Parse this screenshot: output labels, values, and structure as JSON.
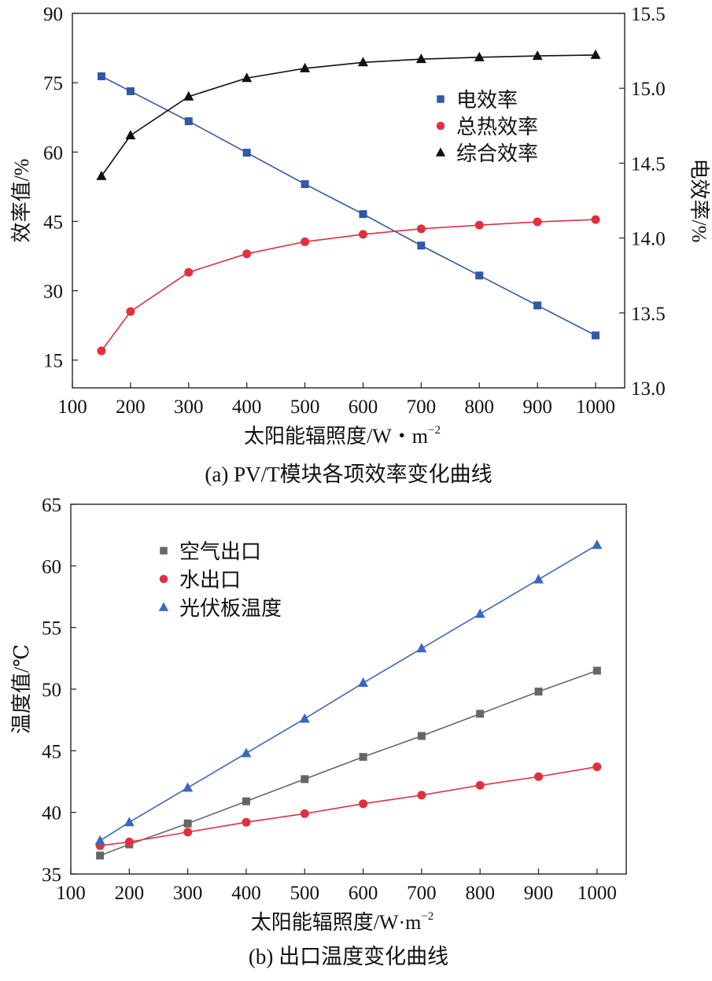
{
  "chart_data": [
    {
      "type": "line",
      "caption": "(a) PV/T模块各项效率变化曲线",
      "xlabel": "太阳能辐照度/W・m",
      "xlabel_sup": "−2",
      "ylabel": "效率值/%",
      "y2label": "电效率/%",
      "xlim": [
        100,
        1050
      ],
      "ylim": [
        9,
        90
      ],
      "y2lim": [
        13.0,
        15.5
      ],
      "xticks": [
        100,
        200,
        300,
        400,
        500,
        600,
        700,
        800,
        900,
        1000
      ],
      "yticks": [
        15,
        30,
        45,
        60,
        75,
        90
      ],
      "y2ticks": [
        "13.0",
        "13.5",
        "14.0",
        "14.5",
        "15.0",
        "15.5"
      ],
      "x": [
        150,
        200,
        300,
        400,
        500,
        600,
        700,
        800,
        900,
        1000
      ],
      "legend_position": "right-middle",
      "series": [
        {
          "name": "电效率",
          "axis": "right",
          "marker": "square",
          "color": "#3358a8",
          "values": [
            15.08,
            14.98,
            14.78,
            14.57,
            14.36,
            14.16,
            13.95,
            13.75,
            13.55,
            13.35
          ]
        },
        {
          "name": "总热效率",
          "axis": "left",
          "marker": "circle",
          "color": "#e03040",
          "values": [
            17.0,
            25.5,
            34.0,
            38.0,
            40.6,
            42.2,
            43.4,
            44.2,
            44.9,
            45.4
          ]
        },
        {
          "name": "综合效率",
          "axis": "left",
          "marker": "triangle",
          "color": "#111111",
          "values": [
            54.8,
            63.6,
            72.0,
            76.0,
            78.1,
            79.4,
            80.1,
            80.5,
            80.8,
            81.0
          ]
        }
      ]
    },
    {
      "type": "line",
      "caption": "(b) 出口温度变化曲线",
      "xlabel": "太阳能辐照度/W·m",
      "xlabel_sup": "−2",
      "ylabel": "温度值/℃",
      "xlim": [
        100,
        1050
      ],
      "ylim": [
        35,
        65
      ],
      "xticks": [
        100,
        200,
        300,
        400,
        500,
        600,
        700,
        800,
        900,
        1000
      ],
      "yticks": [
        35,
        40,
        45,
        50,
        55,
        60,
        65
      ],
      "x": [
        150,
        200,
        300,
        400,
        500,
        600,
        700,
        800,
        900,
        1000
      ],
      "legend_position": "top-left",
      "series": [
        {
          "name": "空气出口",
          "marker": "square",
          "color": "#666666",
          "values": [
            36.5,
            37.4,
            39.1,
            40.9,
            42.7,
            44.5,
            46.2,
            48.0,
            49.8,
            51.5
          ]
        },
        {
          "name": "水出口",
          "marker": "circle",
          "color": "#e03040",
          "values": [
            37.3,
            37.6,
            38.4,
            39.2,
            39.9,
            40.7,
            41.4,
            42.2,
            42.9,
            43.7
          ]
        },
        {
          "name": "光伏板温度",
          "marker": "triangle",
          "color": "#3a68c0",
          "values": [
            37.7,
            39.2,
            42.0,
            44.8,
            47.6,
            50.5,
            53.3,
            56.1,
            58.9,
            61.7
          ]
        }
      ]
    }
  ]
}
